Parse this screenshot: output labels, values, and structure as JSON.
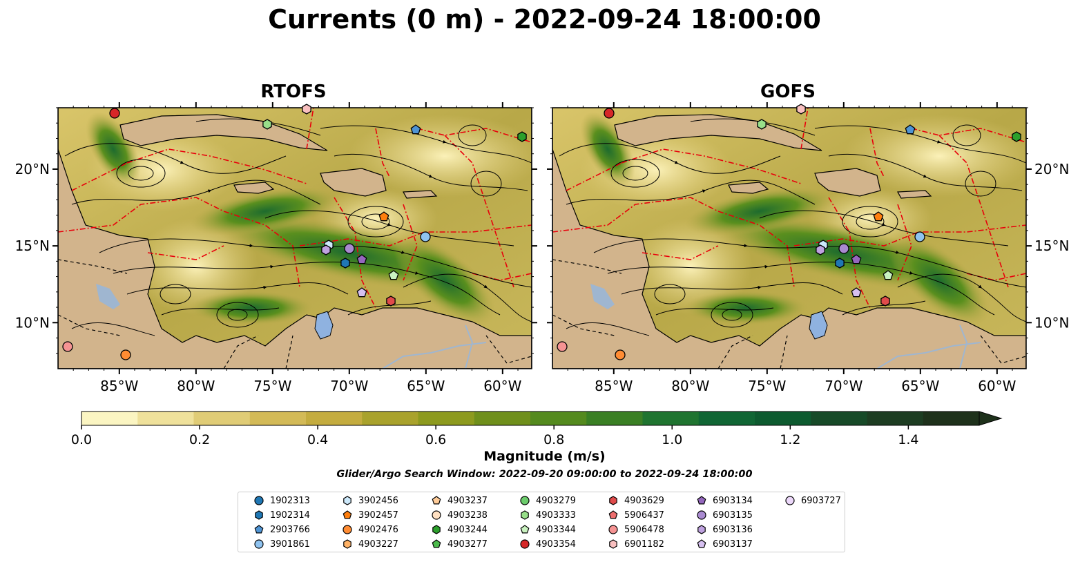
{
  "title": "Currents (0 m) - 2022-09-24 18:00:00",
  "panels": [
    {
      "title": "RTOFS"
    },
    {
      "title": "GOFS"
    }
  ],
  "axes": {
    "lon_ticks": [
      "85°W",
      "80°W",
      "75°W",
      "70°W",
      "65°W",
      "60°W"
    ],
    "lat_ticks": [
      "20°N",
      "15°N",
      "10°N"
    ]
  },
  "colorbar": {
    "label": "Magnitude (m/s)",
    "ticks": [
      "0.0",
      "0.2",
      "0.4",
      "0.6",
      "0.8",
      "1.0",
      "1.2",
      "1.4"
    ],
    "colors": [
      "#fbf5c2",
      "#efe19b",
      "#e0cc76",
      "#d3ba57",
      "#c4ac3f",
      "#a9a22c",
      "#8d9a1e",
      "#6f8f1b",
      "#548a1e",
      "#3a7f24",
      "#1f7430",
      "#106634",
      "#0d5a2f",
      "#174a28",
      "#1d3d22",
      "#1e311b"
    ]
  },
  "search_window": "Glider/Argo Search Window: 2022-09-20 09:00:00 to 2022-09-24 18:00:00",
  "legend": [
    {
      "id": "1902313",
      "color": "#1f77b4",
      "shape": "circle"
    },
    {
      "id": "1902314",
      "color": "#1f77b4",
      "shape": "hexagon"
    },
    {
      "id": "2903766",
      "color": "#4f94d4",
      "shape": "pentagon"
    },
    {
      "id": "3901861",
      "color": "#8fc3f0",
      "shape": "circle"
    },
    {
      "id": "3902456",
      "color": "#cde9fb",
      "shape": "hexagon"
    },
    {
      "id": "3902457",
      "color": "#ff7f0e",
      "shape": "pentagon"
    },
    {
      "id": "4902476",
      "color": "#ff8c33",
      "shape": "circle"
    },
    {
      "id": "4903227",
      "color": "#ffb266",
      "shape": "hexagon"
    },
    {
      "id": "4903237",
      "color": "#ffcc99",
      "shape": "pentagon"
    },
    {
      "id": "4903238",
      "color": "#ffe0c2",
      "shape": "circle"
    },
    {
      "id": "4903244",
      "color": "#2ca02c",
      "shape": "hexagon"
    },
    {
      "id": "4903277",
      "color": "#4cbb4c",
      "shape": "pentagon"
    },
    {
      "id": "4903279",
      "color": "#6ccc6c",
      "shape": "circle"
    },
    {
      "id": "4903333",
      "color": "#98df8a",
      "shape": "hexagon"
    },
    {
      "id": "4903344",
      "color": "#c9f2c0",
      "shape": "pentagon"
    },
    {
      "id": "4903354",
      "color": "#d62728",
      "shape": "circle"
    },
    {
      "id": "4903629",
      "color": "#e04b4b",
      "shape": "hexagon"
    },
    {
      "id": "5906437",
      "color": "#ee6e6e",
      "shape": "pentagon"
    },
    {
      "id": "5906478",
      "color": "#f59393",
      "shape": "circle"
    },
    {
      "id": "6901182",
      "color": "#f9c0c0",
      "shape": "hexagon"
    },
    {
      "id": "6903134",
      "color": "#9467bd",
      "shape": "pentagon"
    },
    {
      "id": "6903135",
      "color": "#a98ad0",
      "shape": "circle"
    },
    {
      "id": "6903136",
      "color": "#bfa2e0",
      "shape": "hexagon"
    },
    {
      "id": "6903137",
      "color": "#d6c0f0",
      "shape": "pentagon"
    },
    {
      "id": "6903727",
      "color": "#ecd8fa",
      "shape": "circle"
    }
  ]
}
